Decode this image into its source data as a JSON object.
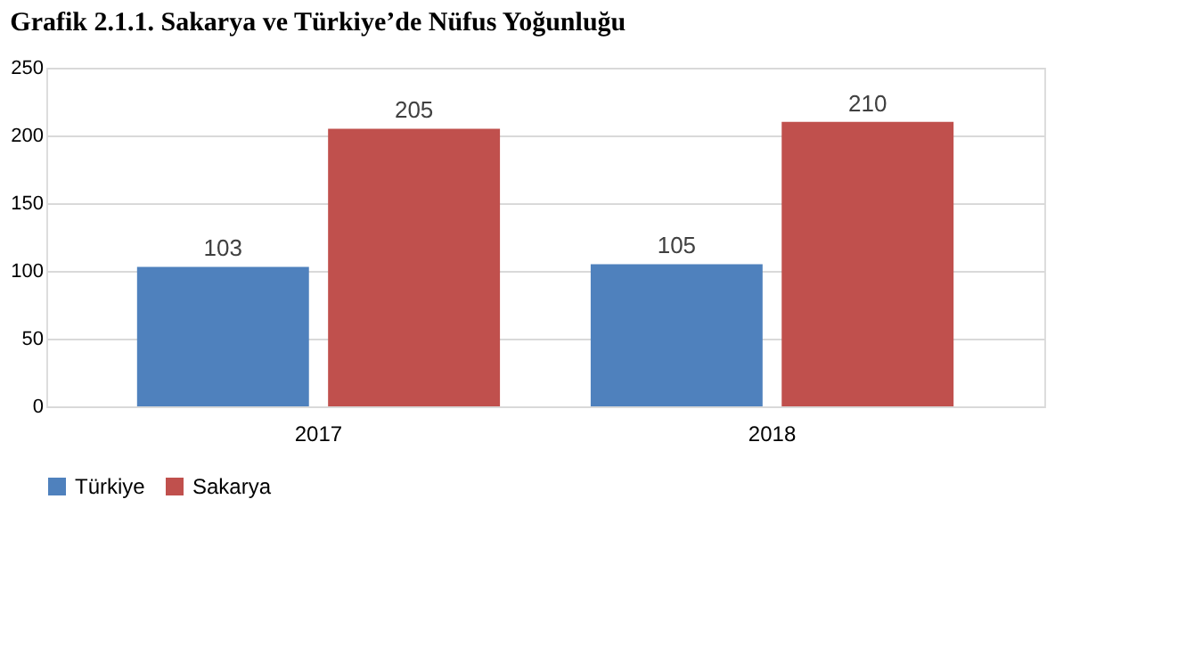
{
  "chart_data": {
    "type": "bar",
    "title": "Grafik 2.1.1. Sakarya ve Türkiye’de Nüfus Yoğunluğu",
    "categories": [
      "2017",
      "2018"
    ],
    "series": [
      {
        "name": "Türkiye",
        "color": "#4f81bd",
        "values": [
          103,
          105
        ]
      },
      {
        "name": "Sakarya",
        "color": "#c0504d",
        "values": [
          205,
          210
        ]
      }
    ],
    "ylim": [
      0,
      250
    ],
    "yticks": [
      0,
      50,
      100,
      150,
      200,
      250
    ],
    "grid": "y",
    "legend": "bottom",
    "data_labels": true
  }
}
